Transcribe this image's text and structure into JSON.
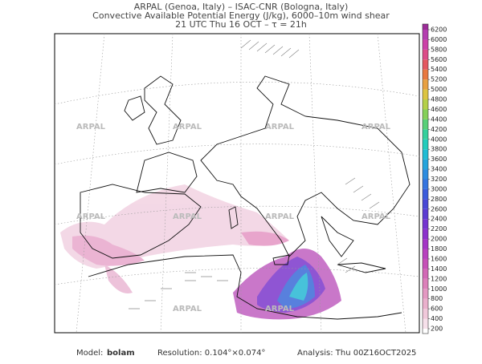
{
  "header": {
    "line1": "ARPAL (Genoa, Italy)  –  ISAC-CNR (Bologna, Italy)",
    "line2": "Convective Available Potential Energy (J/kg), 6000–10m wind shear",
    "line3": "21 UTC Thu 16 OCT  –  τ = 21h"
  },
  "watermark": "ARPAL",
  "colorbar": {
    "levels": [
      200,
      400,
      600,
      800,
      1000,
      1200,
      1400,
      1600,
      1800,
      2000,
      2200,
      2400,
      2600,
      2800,
      3000,
      3200,
      3400,
      3600,
      3800,
      4000,
      4200,
      4400,
      4600,
      4800,
      5000,
      5200,
      5400,
      5600,
      5800,
      6000,
      6200
    ],
    "colors": [
      "#f6e0ea",
      "#f0c8da",
      "#eab0cc",
      "#e498c2",
      "#dc80ba",
      "#d268b6",
      "#c650b8",
      "#b840bf",
      "#a434c6",
      "#8c30cc",
      "#7434d0",
      "#5c3cd2",
      "#4848d6",
      "#3c5cdc",
      "#3474e0",
      "#2c8ce0",
      "#24a4dc",
      "#20bcd4",
      "#22ccbc",
      "#34d09c",
      "#58d078",
      "#84d058",
      "#b4d048",
      "#dcc440",
      "#e8a040",
      "#e87840",
      "#e45860",
      "#dc4c88",
      "#cc40a8",
      "#b43cb0",
      "#9c2c98"
    ]
  },
  "footer": {
    "model_label": "Model:",
    "model": "bolam",
    "resolution": "Resolution: 0.104°×0.074°",
    "analysis": "Analysis: Thu 00Z16OCT2025"
  }
}
